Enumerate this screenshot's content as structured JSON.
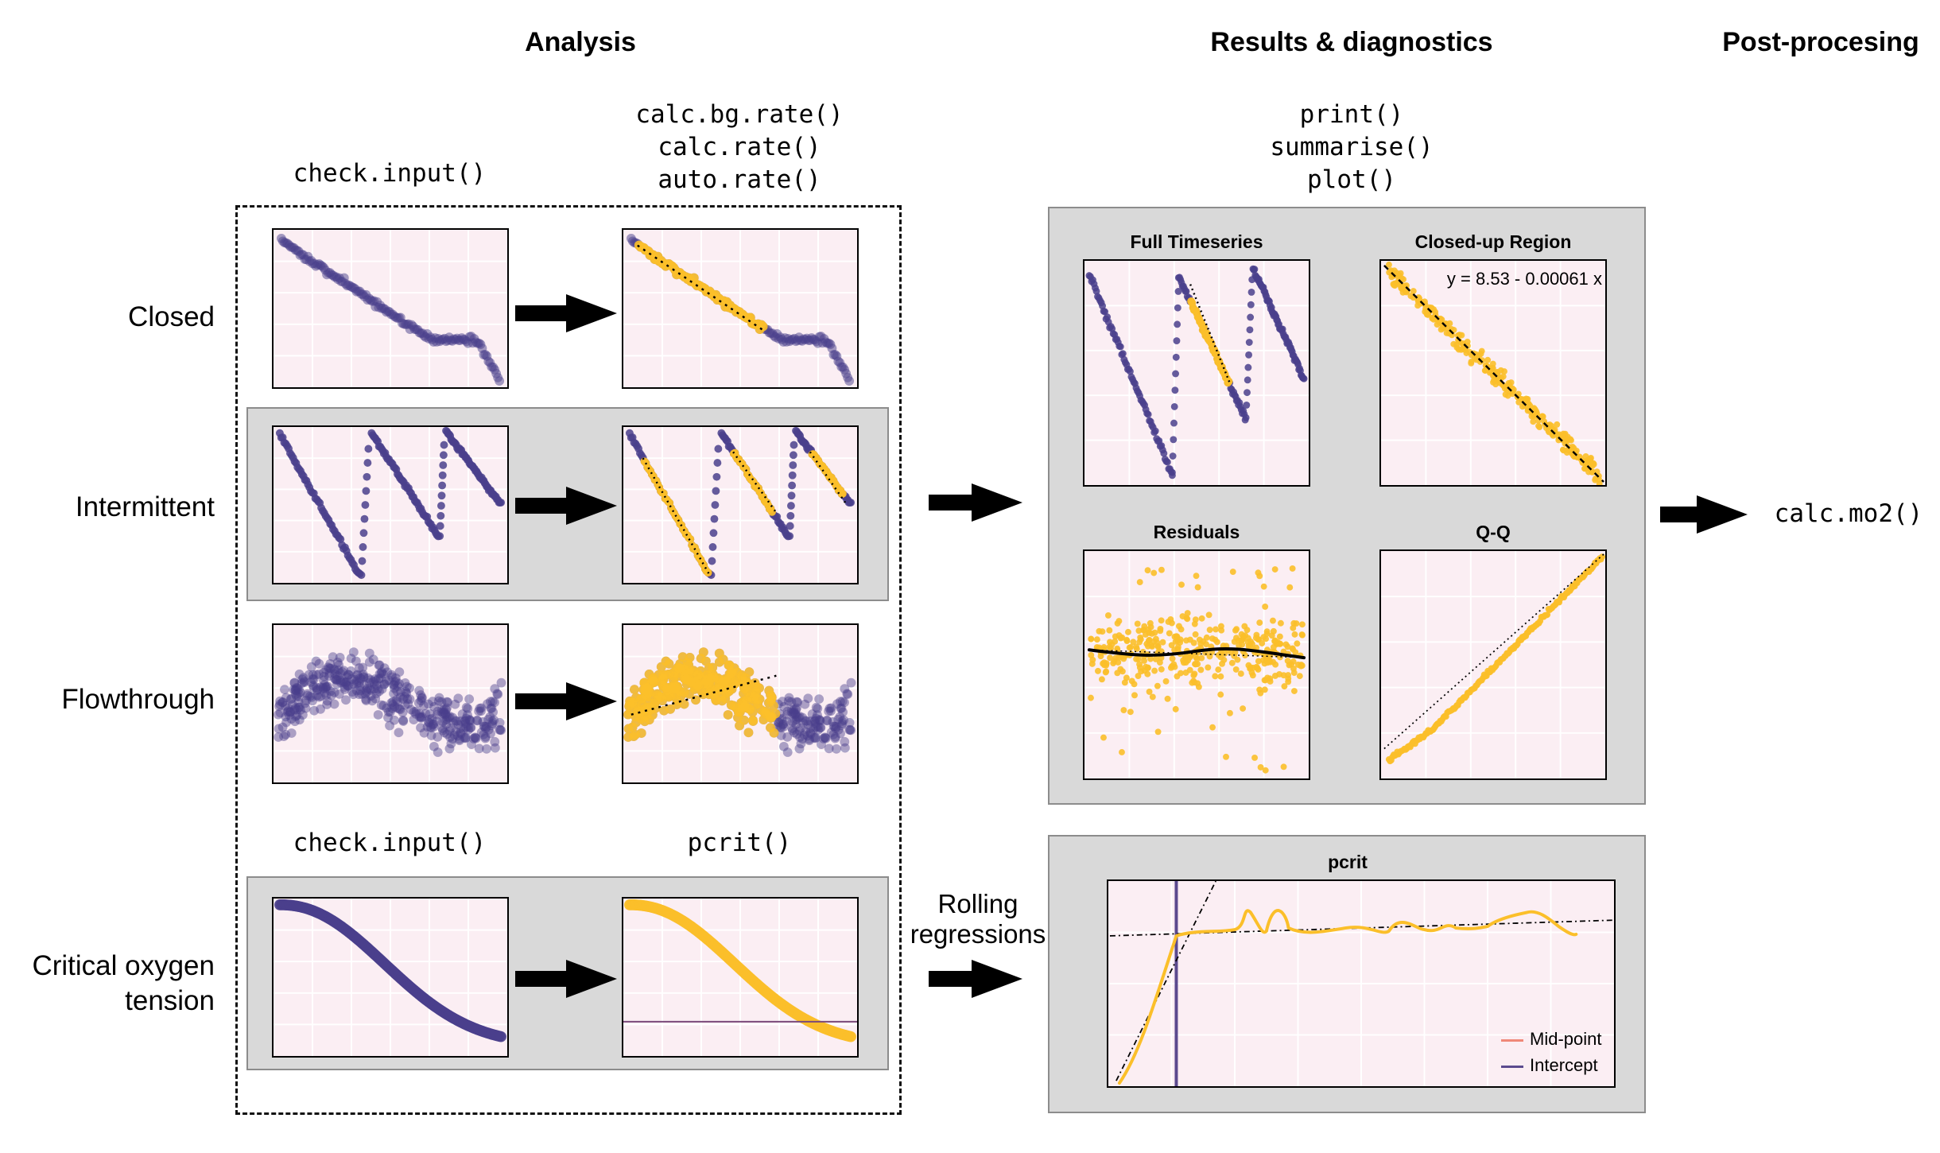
{
  "headers": {
    "analysis": "Analysis",
    "results": "Results & diagnostics",
    "post": "Post-procesing"
  },
  "functions": {
    "check_input_top": "check.input()",
    "rate_funcs": [
      "calc.bg.rate()",
      "calc.rate()",
      "auto.rate()"
    ],
    "result_funcs": [
      "print()",
      "summarise()",
      "plot()"
    ],
    "check_input_bottom": "check.input()",
    "pcrit": "pcrit()",
    "calc_mo2": "calc.mo2()"
  },
  "rows": [
    {
      "id": "closed",
      "label": "Closed"
    },
    {
      "id": "intermittent",
      "label": "Intermittent"
    },
    {
      "id": "flowthrough",
      "label": "Flowthrough"
    },
    {
      "id": "pcrit",
      "label_lines": [
        "Critical oxygen",
        "tension"
      ]
    }
  ],
  "rolling_label": [
    "Rolling",
    "regressions"
  ],
  "diagnostics": {
    "full_title": "Full Timeseries",
    "closeup_title": "Closed-up Region",
    "equation": "y = 8.53 - 0.00061 x",
    "residuals_title": "Residuals",
    "qq_title": "Q-Q"
  },
  "pcrit_plot": {
    "title": "pcrit",
    "legend": [
      {
        "label": "Mid-point",
        "color": "#f08878"
      },
      {
        "label": "Intercept",
        "color": "#5b4a8e"
      }
    ]
  },
  "colors": {
    "purple": "#4a3f8c",
    "yellow": "#fbbf2a",
    "panel_bg": "#fbeef3",
    "grey_box": "#d9d9d9"
  }
}
